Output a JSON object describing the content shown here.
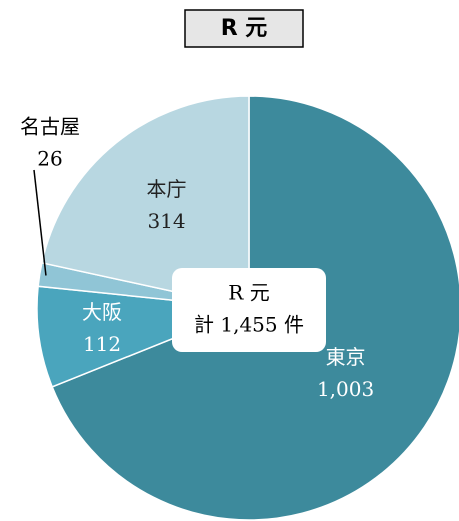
{
  "chart_data": {
    "type": "pie",
    "title": "R 元",
    "center_label": [
      "R 元",
      "計 1,455 件"
    ],
    "categories": [
      "東京",
      "大阪",
      "名古屋",
      "本庁"
    ],
    "values": [
      1003,
      112,
      26,
      314
    ],
    "value_labels": [
      "1,003",
      "112",
      "26",
      "314"
    ],
    "colors": [
      "#3d8a9c",
      "#4aa5bd",
      "#90c5d6",
      "#b8d7e1"
    ]
  }
}
